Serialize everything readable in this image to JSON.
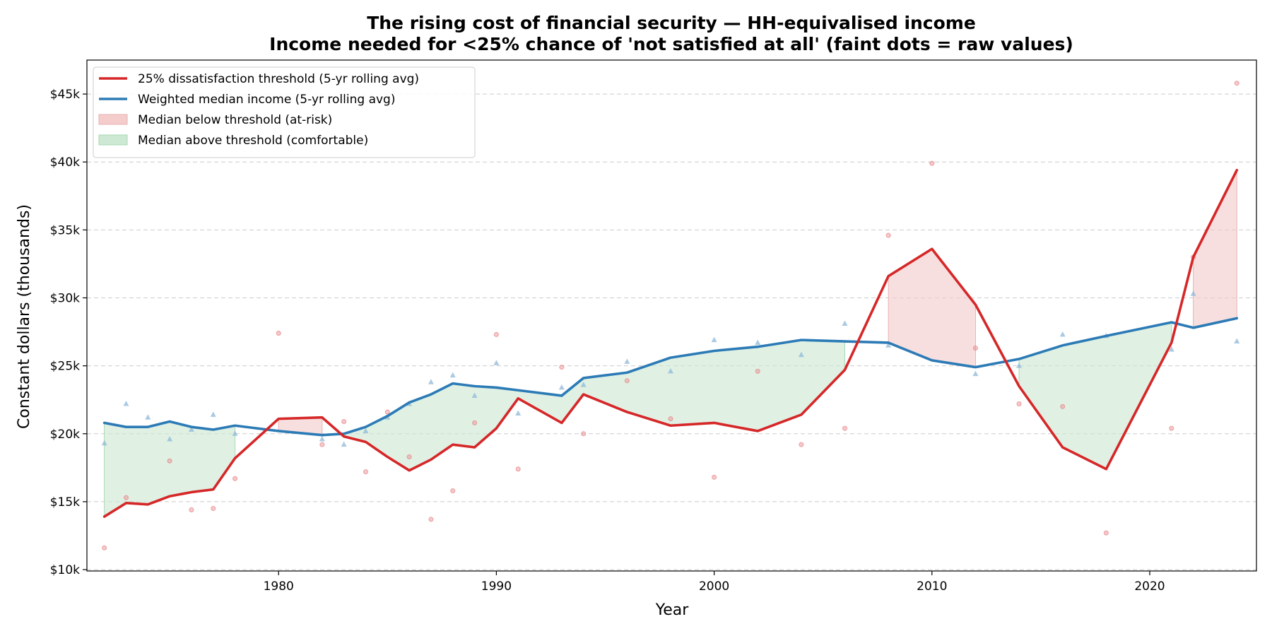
{
  "chart_data": {
    "type": "line",
    "title": "The rising cost of financial security  —  HH-equivalised income",
    "subtitle": "Income needed for <25% chance of 'not satisfied at all'  (faint dots = raw values)",
    "xlabel": "Year",
    "ylabel": "Constant dollars (thousands)",
    "xlim": [
      1971.2,
      2024.9
    ],
    "ylim": [
      9.9,
      47.5
    ],
    "x_ticks": [
      1980,
      1990,
      2000,
      2010,
      2020
    ],
    "x_tick_labels": [
      "1980",
      "1990",
      "2000",
      "2010",
      "2020"
    ],
    "y_ticks": [
      10,
      15,
      20,
      25,
      30,
      35,
      40,
      45
    ],
    "y_tick_labels": [
      "$10k",
      "$15k",
      "$20k",
      "$25k",
      "$30k",
      "$35k",
      "$40k",
      "$45k"
    ],
    "grid": "y-dashed",
    "legend_position": "top-left",
    "legend": [
      {
        "label": "25% dissatisfaction threshold  (5-yr rolling avg)",
        "kind": "line",
        "color": "#d62728"
      },
      {
        "label": "Weighted median income  (5-yr rolling avg)",
        "kind": "line",
        "color": "#2c7bb6"
      },
      {
        "label": "Median below threshold (at-risk)",
        "kind": "patch",
        "color": "#d62728"
      },
      {
        "label": "Median above threshold (comfortable)",
        "kind": "patch",
        "color": "#2ca02c"
      }
    ],
    "colors": {
      "threshold": "#d62728",
      "median": "#2c7bb6",
      "at_risk_fill": "#f4cccc",
      "comfortable_fill": "#cde9d3",
      "raw_threshold": "#e8888b",
      "raw_median": "#8fb8d8",
      "grid": "#cccccc"
    },
    "x": [
      1972,
      1973,
      1974,
      1975,
      1976,
      1977,
      1978,
      1980,
      1982,
      1983,
      1984,
      1985,
      1986,
      1987,
      1988,
      1989,
      1990,
      1991,
      1993,
      1994,
      1996,
      1998,
      2000,
      2002,
      2004,
      2006,
      2008,
      2010,
      2012,
      2014,
      2016,
      2018,
      2021,
      2022,
      2024
    ],
    "series": [
      {
        "name": "25% dissatisfaction threshold  (5-yr rolling avg)",
        "values": [
          13.9,
          14.9,
          14.8,
          15.4,
          15.7,
          15.9,
          18.2,
          21.1,
          21.2,
          19.8,
          19.4,
          18.3,
          17.3,
          18.1,
          19.2,
          19.0,
          20.4,
          22.6,
          20.8,
          22.9,
          21.6,
          20.6,
          20.8,
          20.2,
          21.4,
          24.7,
          31.6,
          33.6,
          29.5,
          23.5,
          19.0,
          17.4,
          26.7,
          33.0,
          39.4
        ]
      },
      {
        "name": "Weighted median income  (5-yr rolling avg)",
        "values": [
          20.8,
          20.5,
          20.5,
          20.9,
          20.5,
          20.3,
          20.6,
          20.2,
          19.9,
          20.0,
          20.5,
          21.3,
          22.3,
          22.9,
          23.7,
          23.5,
          23.4,
          23.2,
          22.8,
          24.1,
          24.5,
          25.6,
          26.1,
          26.4,
          26.9,
          26.8,
          26.7,
          25.4,
          24.9,
          25.5,
          26.5,
          27.2,
          28.2,
          27.8,
          28.5
        ]
      }
    ],
    "raw_points": {
      "threshold": [
        [
          1972,
          11.6
        ],
        [
          1973,
          15.3
        ],
        [
          1975,
          18.0
        ],
        [
          1976,
          14.4
        ],
        [
          1977,
          14.5
        ],
        [
          1978,
          16.7
        ],
        [
          1980,
          27.4
        ],
        [
          1982,
          19.2
        ],
        [
          1983,
          20.9
        ],
        [
          1984,
          17.2
        ],
        [
          1985,
          21.6
        ],
        [
          1986,
          18.3
        ],
        [
          1987,
          13.7
        ],
        [
          1988,
          15.8
        ],
        [
          1989,
          20.8
        ],
        [
          1990,
          27.3
        ],
        [
          1991,
          17.4
        ],
        [
          1993,
          24.9
        ],
        [
          1994,
          20.0
        ],
        [
          1996,
          23.9
        ],
        [
          1998,
          21.1
        ],
        [
          2000,
          16.8
        ],
        [
          2002,
          24.6
        ],
        [
          2004,
          19.2
        ],
        [
          2006,
          20.4
        ],
        [
          2008,
          34.6
        ],
        [
          2010,
          39.9
        ],
        [
          2012,
          26.3
        ],
        [
          2014,
          22.2
        ],
        [
          2016,
          22.0
        ],
        [
          2018,
          12.7
        ],
        [
          2021,
          20.4
        ],
        [
          2022,
          33.0
        ],
        [
          2024,
          45.8
        ]
      ],
      "median": [
        [
          1972,
          19.3
        ],
        [
          1973,
          22.2
        ],
        [
          1974,
          21.2
        ],
        [
          1975,
          19.6
        ],
        [
          1976,
          20.3
        ],
        [
          1977,
          21.4
        ],
        [
          1978,
          20.0
        ],
        [
          1982,
          19.6
        ],
        [
          1983,
          19.2
        ],
        [
          1984,
          20.2
        ],
        [
          1985,
          21.2
        ],
        [
          1986,
          22.2
        ],
        [
          1987,
          23.8
        ],
        [
          1988,
          24.3
        ],
        [
          1989,
          22.8
        ],
        [
          1990,
          25.2
        ],
        [
          1991,
          21.5
        ],
        [
          1993,
          23.4
        ],
        [
          1994,
          23.6
        ],
        [
          1996,
          25.3
        ],
        [
          1998,
          24.6
        ],
        [
          2000,
          26.9
        ],
        [
          2002,
          26.7
        ],
        [
          2004,
          25.8
        ],
        [
          2006,
          28.1
        ],
        [
          2008,
          26.5
        ],
        [
          2012,
          24.4
        ],
        [
          2014,
          25.0
        ],
        [
          2016,
          27.3
        ],
        [
          2018,
          27.2
        ],
        [
          2021,
          26.2
        ],
        [
          2022,
          30.3
        ],
        [
          2024,
          26.8
        ]
      ]
    }
  }
}
